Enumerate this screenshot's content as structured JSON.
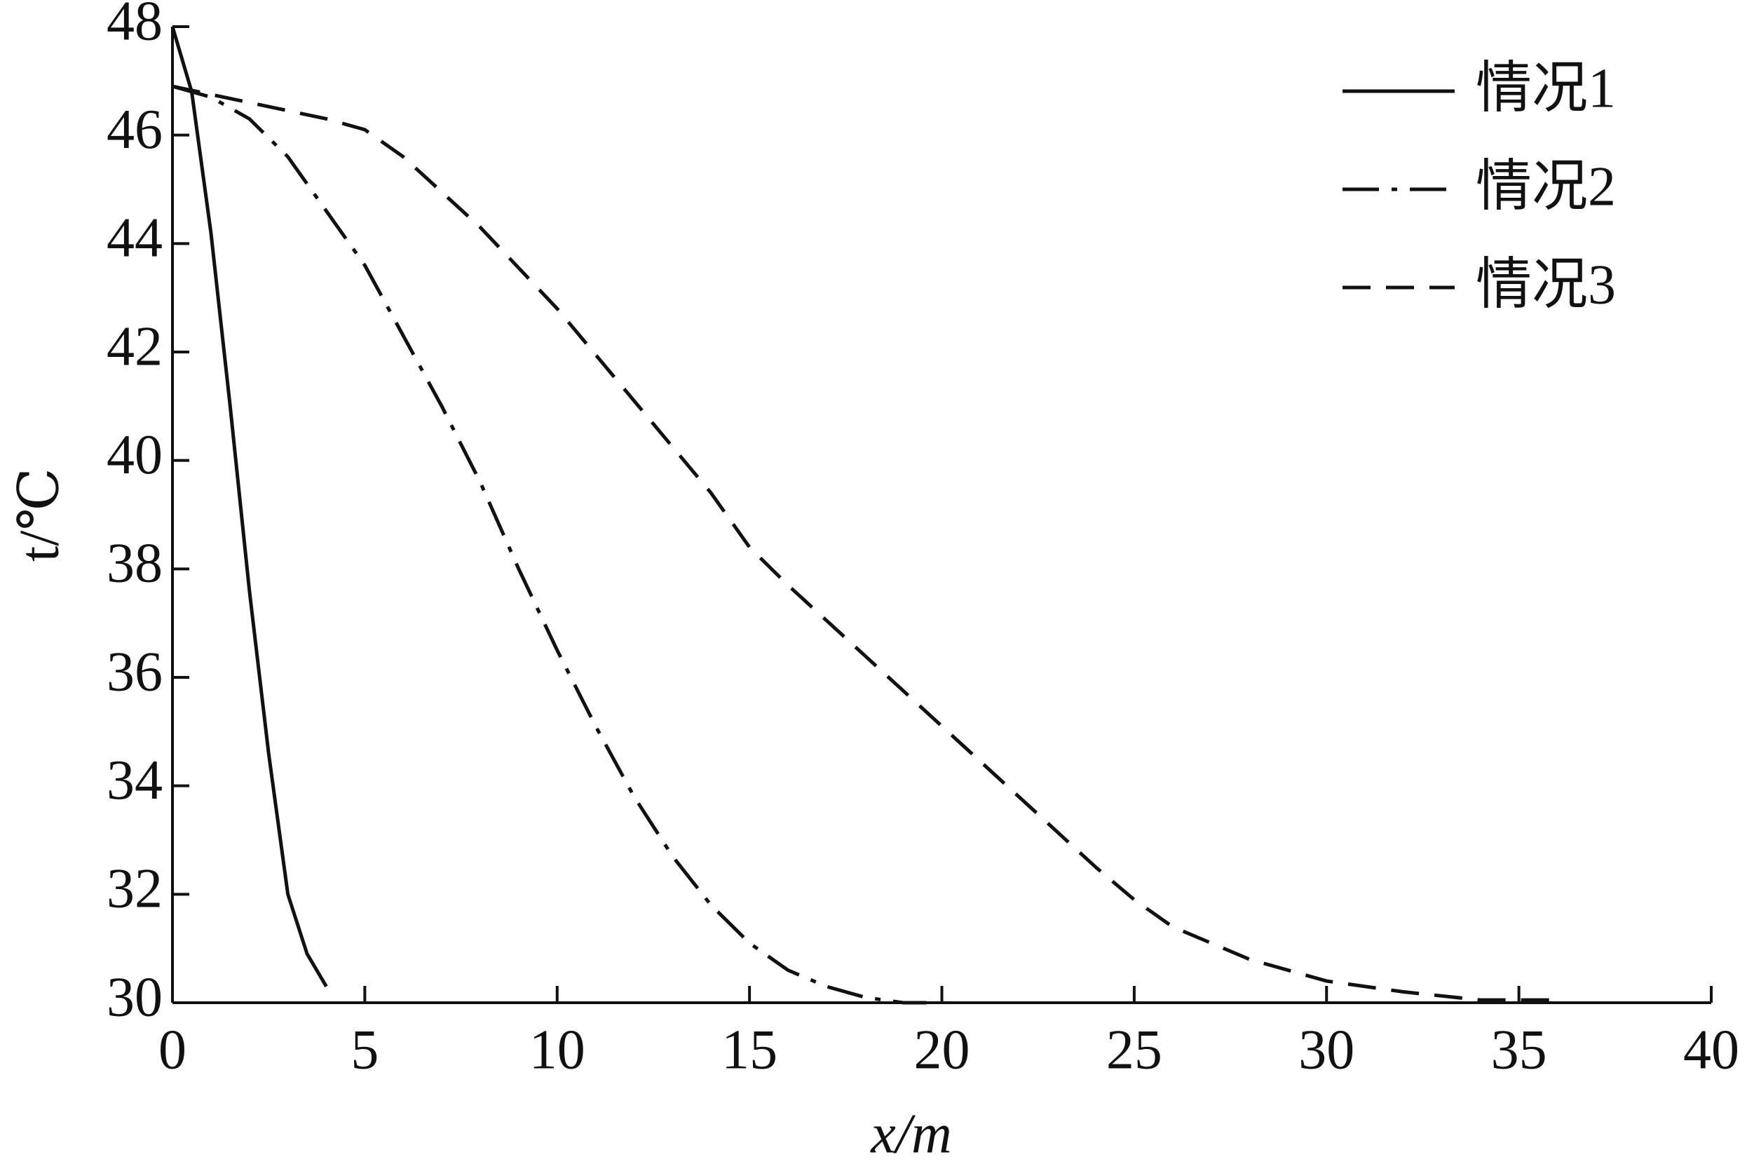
{
  "chart_data": {
    "type": "line",
    "xlabel": "x/m",
    "ylabel": "t/℃",
    "xlim": [
      0,
      40
    ],
    "ylim": [
      30,
      48
    ],
    "xticks": [
      0,
      5,
      10,
      15,
      20,
      25,
      30,
      35,
      40
    ],
    "yticks": [
      30,
      32,
      34,
      36,
      38,
      40,
      42,
      44,
      46,
      48
    ],
    "legend": "upper right",
    "series": [
      {
        "name": "情况1",
        "color": "#111111",
        "dash": "solid",
        "x": [
          0,
          0.5,
          1,
          1.5,
          2,
          2.5,
          3,
          3.5,
          4
        ],
        "values": [
          48,
          46.8,
          44.2,
          41,
          37.6,
          34.6,
          32,
          30.9,
          30.3
        ]
      },
      {
        "name": "情况2",
        "color": "#111111",
        "dash": "dashdot",
        "x": [
          0,
          1,
          2,
          3,
          4,
          5,
          6,
          7,
          8,
          9,
          10,
          11,
          12,
          13,
          14,
          15,
          16,
          17,
          18,
          19,
          19.6
        ],
        "values": [
          46.9,
          46.7,
          46.3,
          45.6,
          44.6,
          43.6,
          42.3,
          41,
          39.6,
          38,
          36.5,
          35.1,
          33.8,
          32.7,
          31.8,
          31.1,
          30.6,
          30.3,
          30.1,
          30,
          30
        ]
      },
      {
        "name": "情况3",
        "color": "#111111",
        "dash": "dashed",
        "x": [
          0,
          2,
          4,
          5,
          6,
          8,
          10,
          12,
          14,
          15,
          16,
          18,
          20,
          22,
          24,
          25,
          26,
          28,
          30,
          32,
          34,
          36
        ],
        "values": [
          46.9,
          46.6,
          46.3,
          46.1,
          45.6,
          44.3,
          42.8,
          41.1,
          39.4,
          38.4,
          37.7,
          36.4,
          35.1,
          33.8,
          32.5,
          31.9,
          31.4,
          30.8,
          30.4,
          30.2,
          30.05,
          30.05
        ]
      }
    ]
  }
}
